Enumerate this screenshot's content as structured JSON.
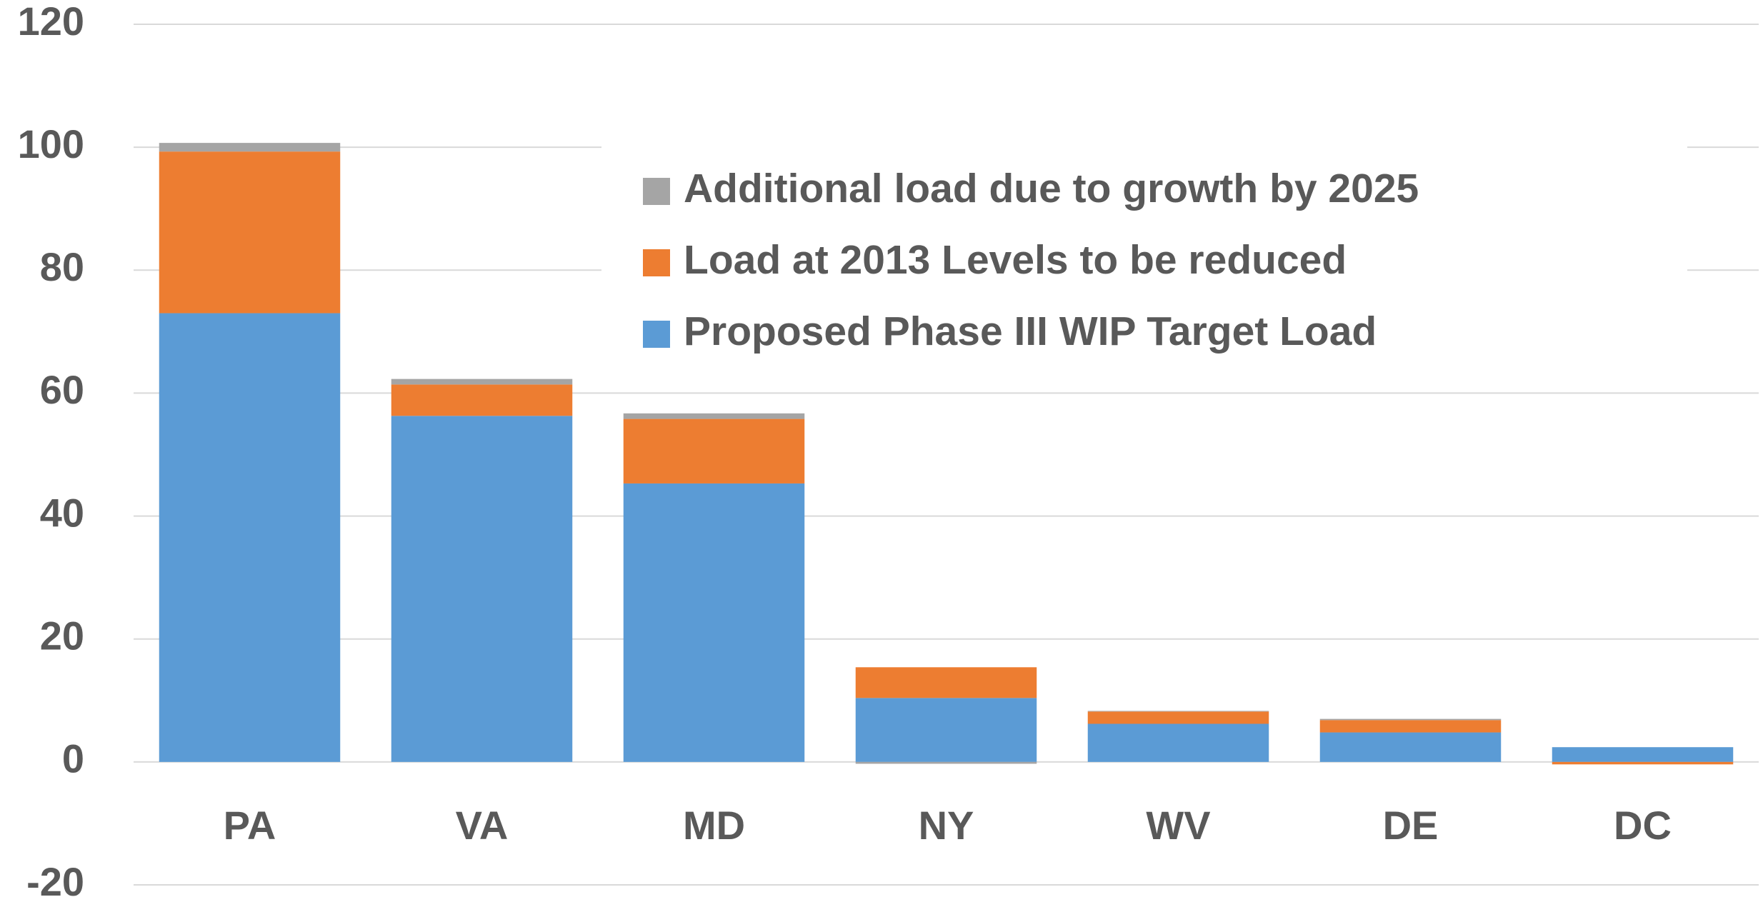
{
  "chart_data": {
    "type": "stacked_bar",
    "categories": [
      "PA",
      "VA",
      "MD",
      "NY",
      "WV",
      "DE",
      "DC"
    ],
    "series": [
      {
        "name": "Proposed Phase III WIP Target Load",
        "color": "#5b9bd5",
        "values": [
          73,
          56.3,
          45.3,
          10.4,
          6.2,
          4.8,
          2.4
        ]
      },
      {
        "name": "Load at 2013 Levels to be reduced",
        "color": "#ed7d31",
        "values": [
          26.3,
          5.1,
          10.5,
          5.0,
          2.0,
          2.0,
          -0.4
        ]
      },
      {
        "name": "Additional load due to growth by 2025",
        "color": "#a5a5a5",
        "values": [
          1.4,
          0.9,
          0.9,
          -0.3,
          0.1,
          0.2,
          0
        ]
      }
    ],
    "ylim": [
      -20,
      120
    ],
    "yticks": [
      -20,
      0,
      20,
      40,
      60,
      80,
      100,
      120
    ],
    "grid": true,
    "legend": "top-right"
  }
}
